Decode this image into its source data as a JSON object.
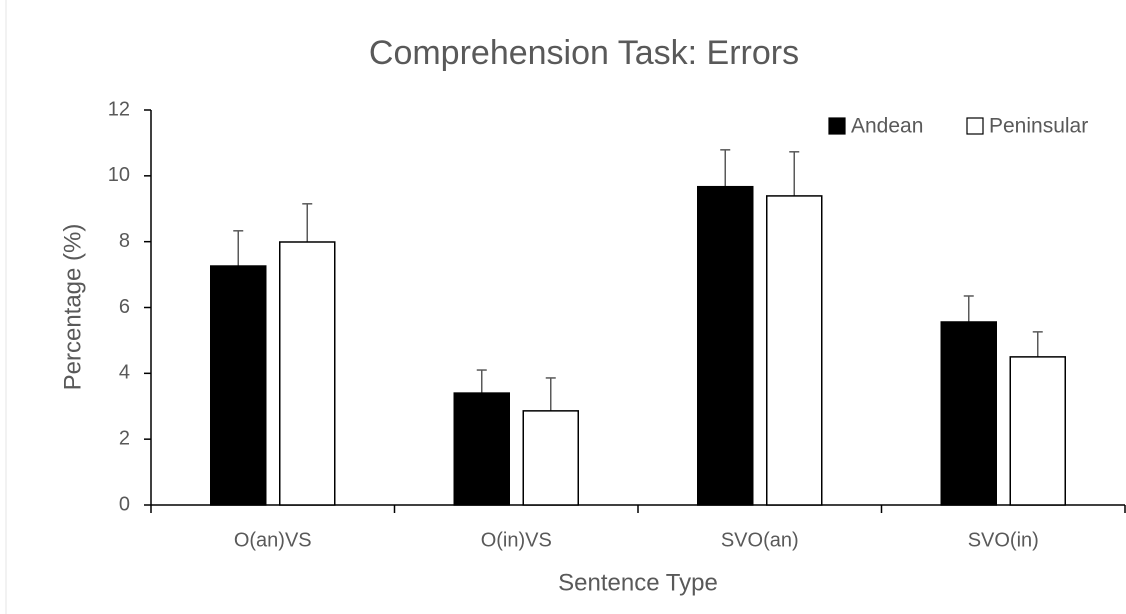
{
  "chart_data": {
    "type": "bar",
    "title": "Comprehension Task: Errors",
    "x_label": "Sentence Type",
    "y_label": "Percentage (%)",
    "categories": [
      "O(an)VS",
      "O(in)VS",
      "SVO(an)",
      "SVO(in)"
    ],
    "series": [
      {
        "name": "Andean",
        "color": "#000000",
        "values": [
          7.26,
          3.4,
          9.67,
          5.56
        ],
        "errors": [
          1.07,
          0.7,
          1.12,
          0.79
        ]
      },
      {
        "name": "Peninsular",
        "color": "#ffffff",
        "values": [
          7.99,
          2.86,
          9.39,
          4.5
        ],
        "errors": [
          1.16,
          1.0,
          1.34,
          0.76
        ]
      }
    ],
    "ylim": [
      0,
      12
    ],
    "yticks": [
      0,
      2,
      4,
      6,
      8,
      10,
      12
    ],
    "grid": false,
    "legend": "top-right"
  }
}
